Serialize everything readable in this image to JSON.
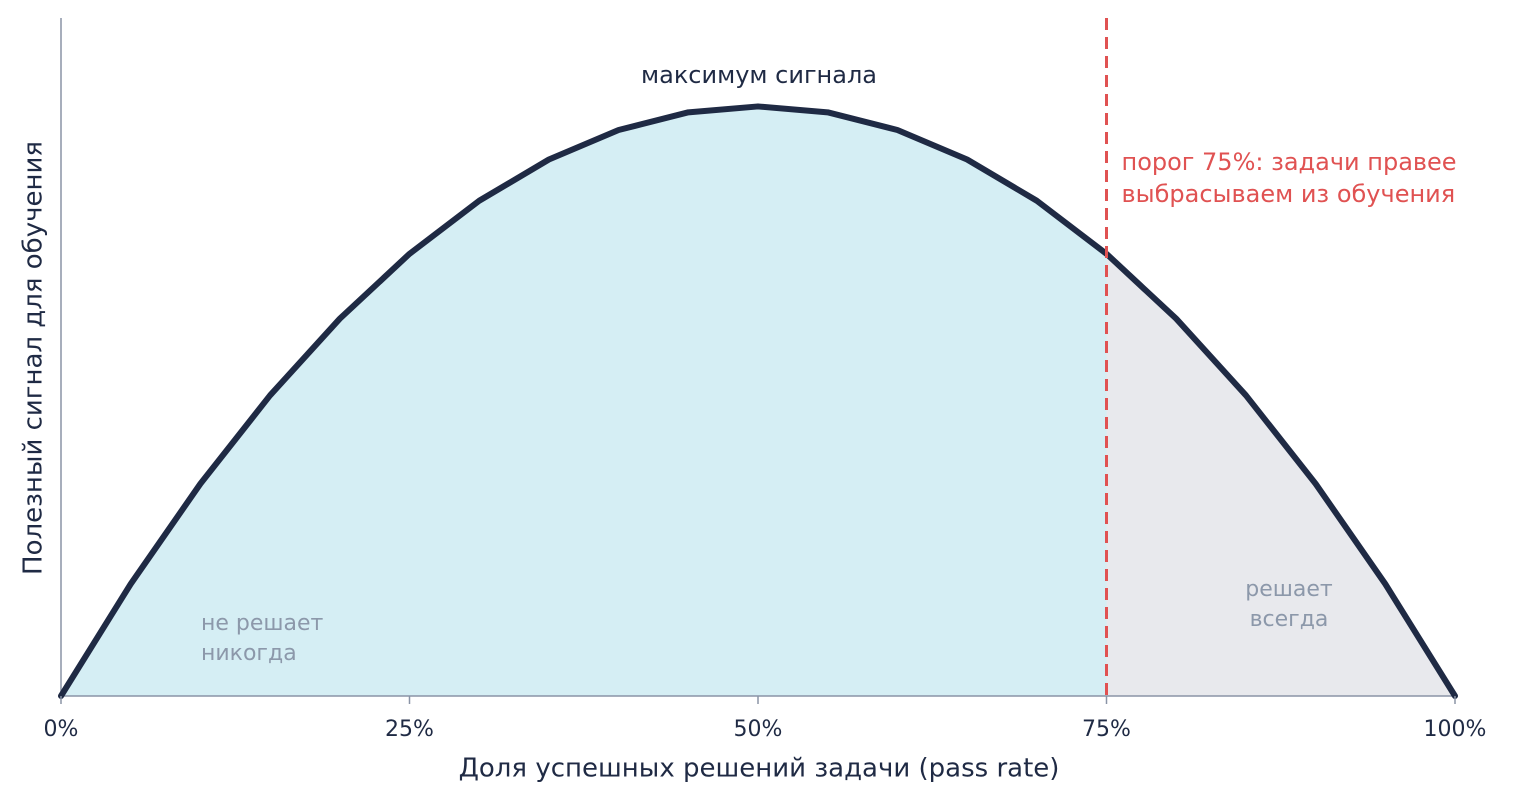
{
  "chart_data": {
    "type": "area",
    "x_label": "Доля успешных решений задачи (pass rate)",
    "y_label": "Полезный сигнал для обучения",
    "x": [
      0,
      5,
      10,
      15,
      20,
      25,
      30,
      35,
      40,
      45,
      50,
      55,
      60,
      65,
      70,
      75,
      80,
      85,
      90,
      95,
      100
    ],
    "values": [
      0,
      0.19,
      0.36,
      0.51,
      0.64,
      0.75,
      0.84,
      0.91,
      0.96,
      0.99,
      1,
      0.99,
      0.96,
      0.91,
      0.84,
      0.75,
      0.64,
      0.51,
      0.36,
      0.19,
      0
    ],
    "color": "#1f2a44",
    "fill_colors": [
      "#d5eef4",
      "#e8e9ed"
    ],
    "xlim": [
      0,
      100
    ],
    "ylim": [
      0,
      1.15
    ],
    "xticks": [
      {
        "value": 0,
        "label": "0%"
      },
      {
        "value": 25,
        "label": "25%"
      },
      {
        "value": 50,
        "label": "50%"
      },
      {
        "value": 75,
        "label": "75%"
      },
      {
        "value": 100,
        "label": "100%"
      }
    ],
    "threshold": {
      "x": 75,
      "color": "#e05252",
      "label": [
        "порог 75%: задачи правее",
        "выбрасываем из обучения"
      ]
    },
    "peak_label": "максимум сигнала",
    "left_label": [
      "не решает",
      "никогда"
    ],
    "right_label": [
      "решает",
      "всегда"
    ]
  }
}
